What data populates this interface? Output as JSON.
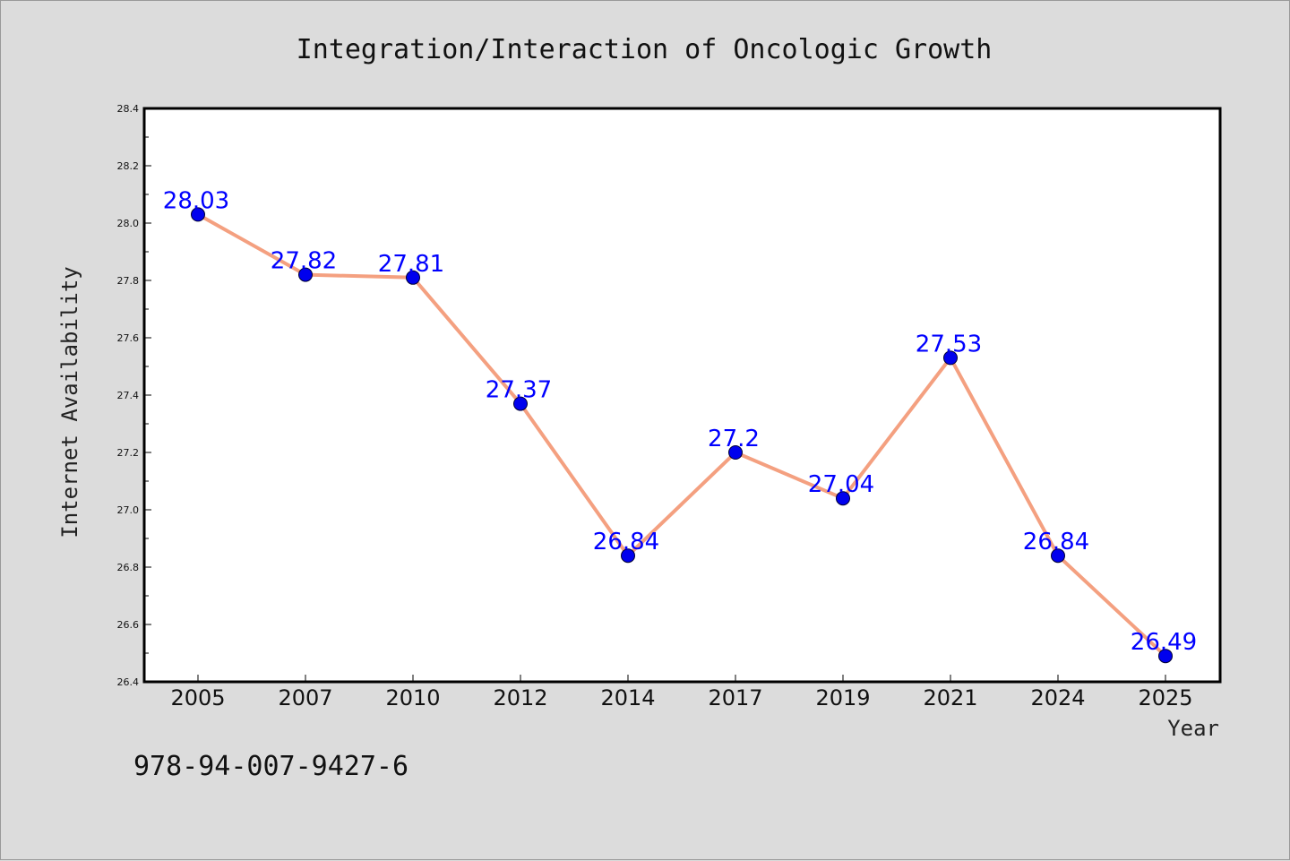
{
  "chart_data": {
    "type": "line",
    "title": "Integration/Interaction of Oncologic Growth",
    "xlabel": "Year",
    "ylabel": "Internet Availability",
    "categories": [
      "2005",
      "2007",
      "2010",
      "2012",
      "2014",
      "2017",
      "2019",
      "2021",
      "2024",
      "2025"
    ],
    "series": [
      {
        "values": [
          28.03,
          27.82,
          27.81,
          27.37,
          26.84,
          27.2,
          27.04,
          27.53,
          26.84,
          26.49
        ],
        "data_labels": [
          "28.03",
          "27.82",
          "27.81",
          "27.37",
          "26.84",
          "27.2",
          "27.04",
          "27.53",
          "26.84",
          "26.49"
        ],
        "line_color": "#f4a080",
        "marker_color": "#0000ee"
      }
    ],
    "ylim": [
      26.4,
      28.4
    ],
    "yticks": [
      "26.4",
      "26.6",
      "26.8",
      "27.0",
      "27.2",
      "27.4",
      "27.6",
      "27.8",
      "28.0",
      "28.2",
      "28.4"
    ],
    "grid": false,
    "legend": "none"
  },
  "footer_text": "978-94-007-9427-6",
  "colors": {
    "background": "#dcdcdc",
    "plot_background": "#ffffff",
    "data_label": "#0000ff"
  }
}
